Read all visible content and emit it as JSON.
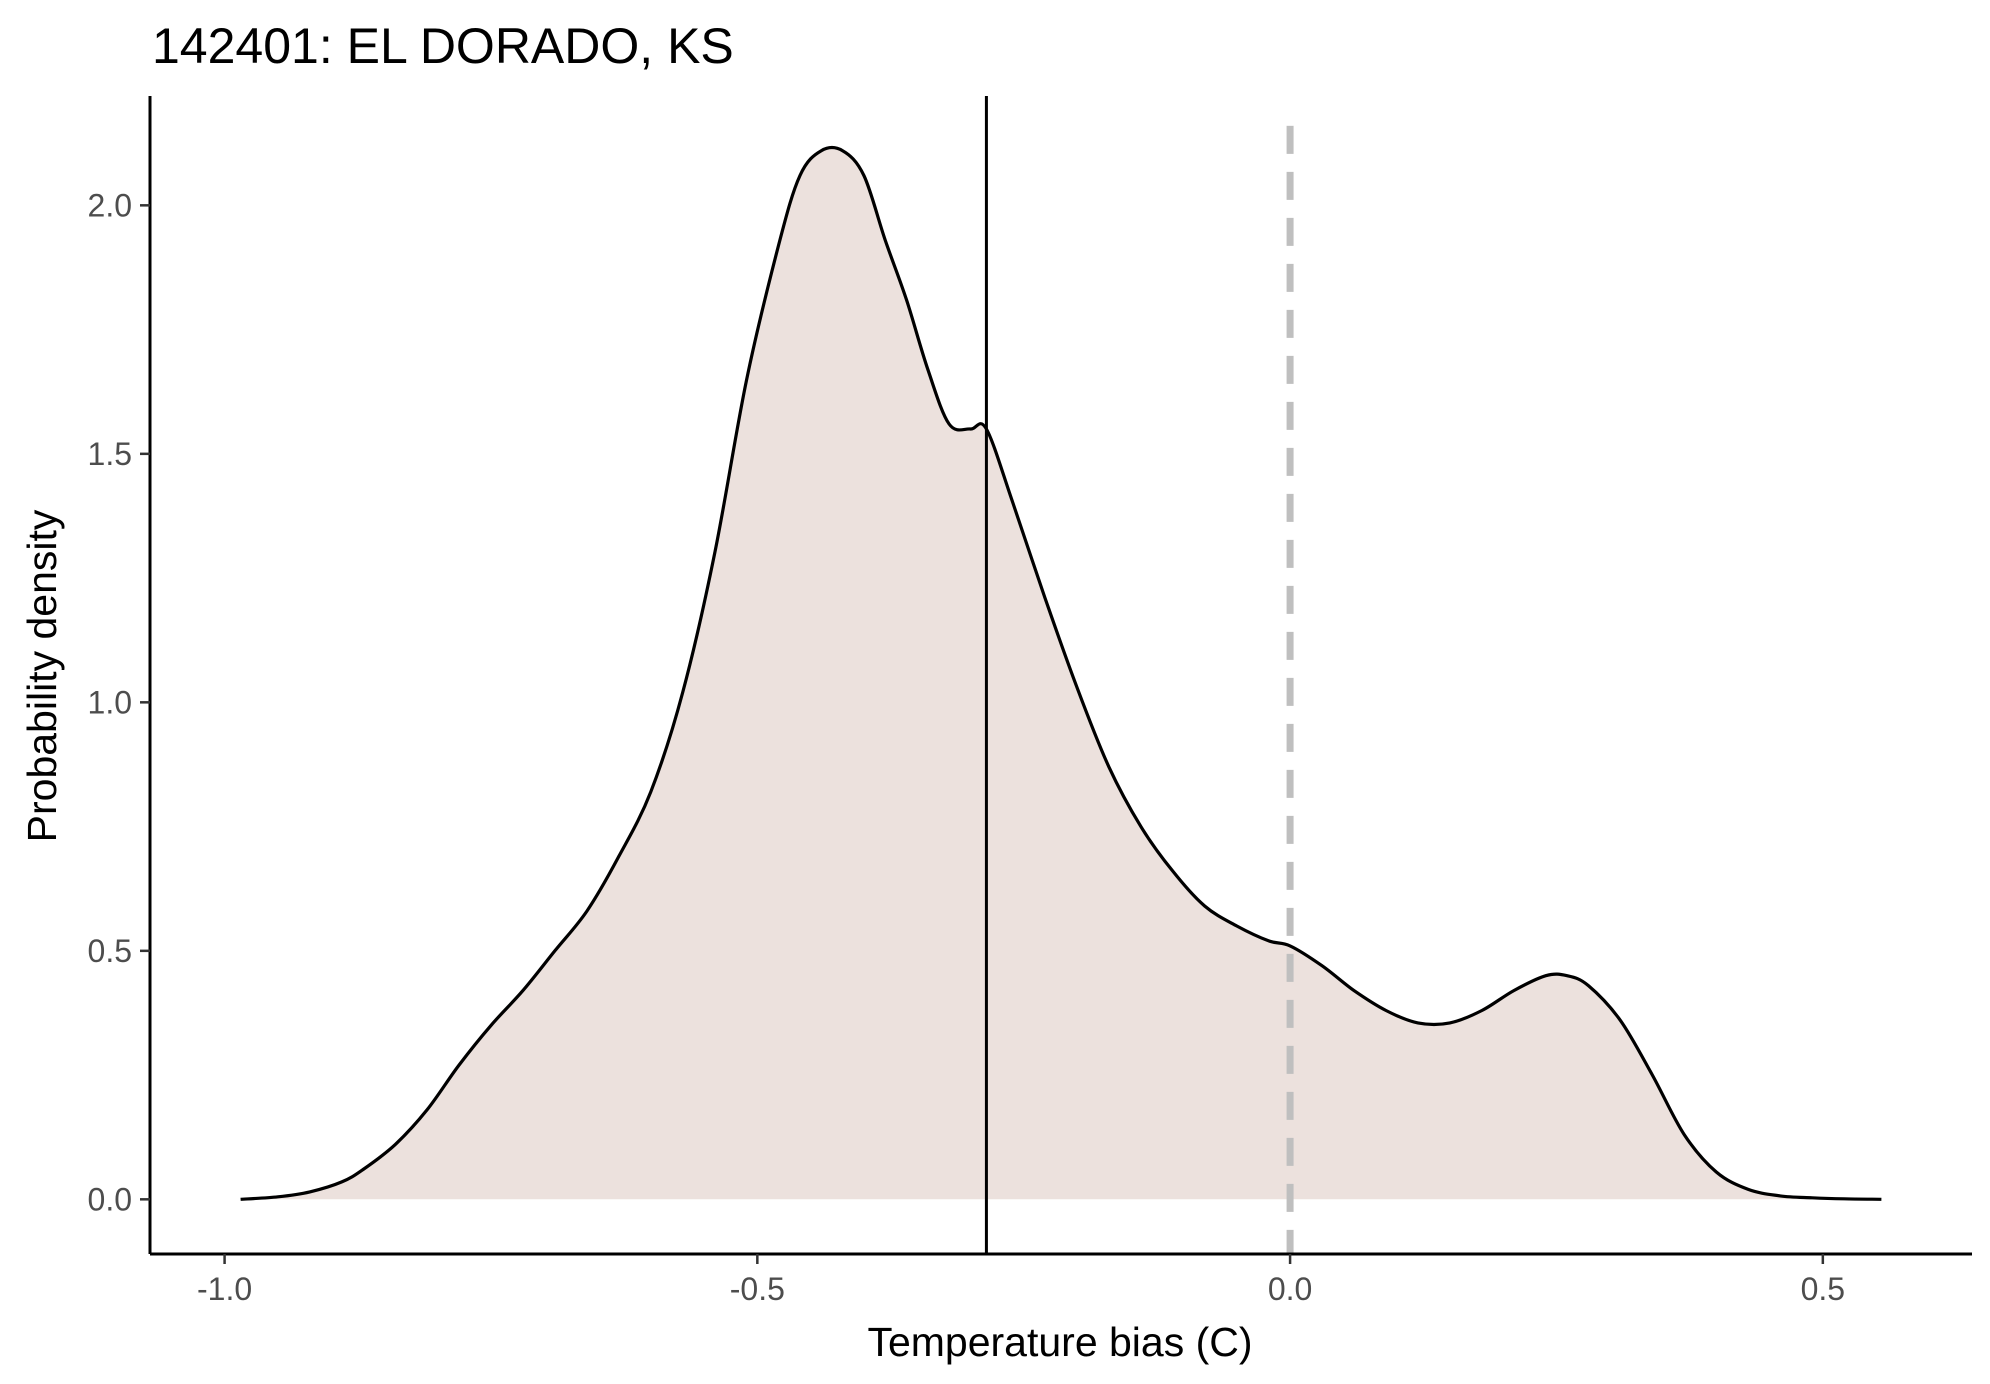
{
  "chart_data": {
    "type": "area",
    "title": "142401: EL DORADO, KS",
    "xlabel": "Temperature bias (C)",
    "ylabel": "Probability density",
    "xlim": [
      -1.07,
      0.64
    ],
    "ylim": [
      -0.11,
      2.22
    ],
    "x_ticks": [
      -1.0,
      -0.5,
      0.0,
      0.5
    ],
    "x_tick_labels": [
      "-1.0",
      "-0.5",
      "0.0",
      "0.5"
    ],
    "y_ticks": [
      0.0,
      0.5,
      1.0,
      1.5,
      2.0
    ],
    "y_tick_labels": [
      "0.0",
      "0.5",
      "1.0",
      "1.5",
      "2.0"
    ],
    "grid": false,
    "legend": "none",
    "fill_color": "#ece1dd",
    "line_color": "#000000",
    "reference_lines": [
      {
        "x": -0.285,
        "style": "solid",
        "color": "#000000"
      },
      {
        "x": 0.0,
        "style": "dashed",
        "color": "#bfbfbf"
      }
    ],
    "series": [
      {
        "x": [
          -0.985,
          -0.95,
          -0.92,
          -0.89,
          -0.87,
          -0.84,
          -0.81,
          -0.78,
          -0.75,
          -0.72,
          -0.69,
          -0.66,
          -0.63,
          -0.6,
          -0.57,
          -0.54,
          -0.51,
          -0.48,
          -0.46,
          -0.44,
          -0.42,
          -0.4,
          -0.38,
          -0.36,
          -0.34,
          -0.32,
          -0.3,
          -0.285,
          -0.26,
          -0.23,
          -0.2,
          -0.17,
          -0.14,
          -0.11,
          -0.08,
          -0.05,
          -0.02,
          0.0,
          0.03,
          0.06,
          0.09,
          0.12,
          0.15,
          0.18,
          0.21,
          0.24,
          0.26,
          0.28,
          0.31,
          0.34,
          0.37,
          0.4,
          0.43,
          0.46,
          0.49,
          0.52,
          0.555
        ],
        "y": [
          0.0,
          0.005,
          0.015,
          0.035,
          0.06,
          0.11,
          0.18,
          0.27,
          0.35,
          0.42,
          0.5,
          0.58,
          0.69,
          0.82,
          1.02,
          1.3,
          1.65,
          1.92,
          2.06,
          2.11,
          2.11,
          2.06,
          1.93,
          1.81,
          1.67,
          1.56,
          1.55,
          1.55,
          1.4,
          1.21,
          1.03,
          0.87,
          0.75,
          0.66,
          0.59,
          0.55,
          0.52,
          0.51,
          0.47,
          0.42,
          0.38,
          0.355,
          0.355,
          0.38,
          0.42,
          0.45,
          0.45,
          0.43,
          0.36,
          0.25,
          0.13,
          0.055,
          0.02,
          0.007,
          0.003,
          0.001,
          0.0
        ]
      }
    ]
  }
}
